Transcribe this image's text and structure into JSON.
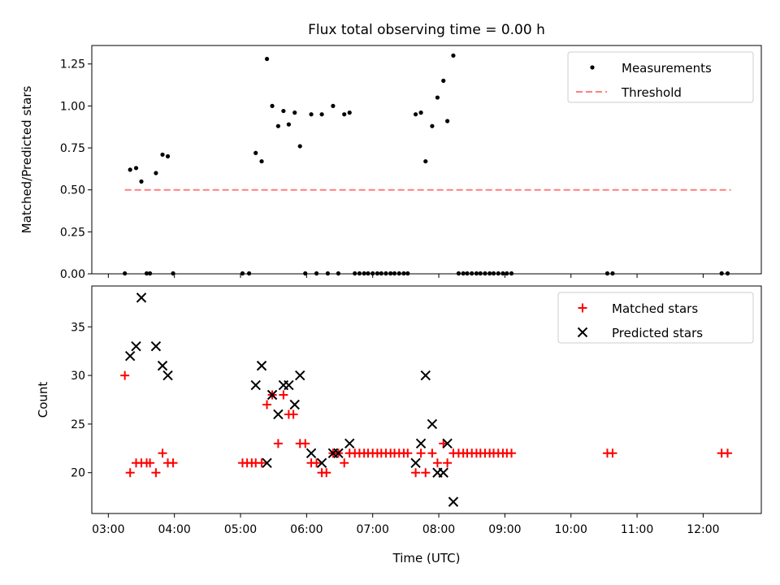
{
  "title": "Flux total observing time = 0.00 h",
  "chart_data": [
    {
      "type": "scatter",
      "ylabel": "Matched/Predicted stars",
      "ylim": [
        0,
        1.36
      ],
      "xlim_hours": [
        2.75,
        12.88
      ],
      "yticks": [
        0.0,
        0.25,
        0.5,
        0.75,
        1.0,
        1.25
      ],
      "ytick_labels": [
        "0.00",
        "0.25",
        "0.50",
        "0.75",
        "1.00",
        "1.25"
      ],
      "legend": {
        "position": "upper right",
        "entries": [
          "Measurements",
          "Threshold"
        ]
      },
      "threshold": {
        "name": "Threshold",
        "value": 0.5,
        "x_start": 3.25,
        "x_end": 12.42,
        "color": "#ff7f7f",
        "style": "dashed"
      },
      "series": [
        {
          "name": "Measurements",
          "marker": "dot",
          "color": "#000000",
          "points": [
            [
              3.25,
              0.0
            ],
            [
              3.33,
              0.62
            ],
            [
              3.42,
              0.63
            ],
            [
              3.5,
              0.55
            ],
            [
              3.58,
              0.0
            ],
            [
              3.63,
              0.0
            ],
            [
              3.72,
              0.6
            ],
            [
              3.82,
              0.71
            ],
            [
              3.9,
              0.7
            ],
            [
              3.98,
              0.0
            ],
            [
              5.03,
              0.0
            ],
            [
              5.13,
              0.0
            ],
            [
              5.23,
              0.72
            ],
            [
              5.32,
              0.67
            ],
            [
              5.4,
              1.28
            ],
            [
              5.48,
              1.0
            ],
            [
              5.57,
              0.88
            ],
            [
              5.65,
              0.97
            ],
            [
              5.73,
              0.89
            ],
            [
              5.82,
              0.96
            ],
            [
              5.9,
              0.76
            ],
            [
              5.98,
              0.0
            ],
            [
              6.07,
              0.95
            ],
            [
              6.15,
              0.0
            ],
            [
              6.23,
              0.95
            ],
            [
              6.32,
              0.0
            ],
            [
              6.4,
              1.0
            ],
            [
              6.48,
              0.0
            ],
            [
              6.57,
              0.95
            ],
            [
              6.65,
              0.96
            ],
            [
              6.73,
              0.0
            ],
            [
              6.8,
              0.0
            ],
            [
              6.87,
              0.0
            ],
            [
              6.93,
              0.0
            ],
            [
              7.0,
              0.0
            ],
            [
              7.07,
              0.0
            ],
            [
              7.13,
              0.0
            ],
            [
              7.2,
              0.0
            ],
            [
              7.27,
              0.0
            ],
            [
              7.33,
              0.0
            ],
            [
              7.4,
              0.0
            ],
            [
              7.47,
              0.0
            ],
            [
              7.53,
              0.0
            ],
            [
              7.65,
              0.95
            ],
            [
              7.73,
              0.96
            ],
            [
              7.8,
              0.67
            ],
            [
              7.9,
              0.88
            ],
            [
              7.98,
              1.05
            ],
            [
              8.07,
              1.15
            ],
            [
              8.13,
              0.91
            ],
            [
              8.22,
              1.3
            ],
            [
              8.3,
              0.0
            ],
            [
              8.37,
              0.0
            ],
            [
              8.43,
              0.0
            ],
            [
              8.5,
              0.0
            ],
            [
              8.57,
              0.0
            ],
            [
              8.63,
              0.0
            ],
            [
              8.7,
              0.0
            ],
            [
              8.77,
              0.0
            ],
            [
              8.83,
              0.0
            ],
            [
              8.9,
              0.0
            ],
            [
              8.97,
              0.0
            ],
            [
              9.03,
              0.0
            ],
            [
              9.1,
              0.0
            ],
            [
              10.55,
              0.0
            ],
            [
              10.63,
              0.0
            ],
            [
              12.28,
              0.0
            ],
            [
              12.37,
              0.0
            ]
          ]
        }
      ]
    },
    {
      "type": "scatter",
      "xlabel": "Time (UTC)",
      "ylabel": "Count",
      "ylim": [
        15.8,
        39.2
      ],
      "xlim_hours": [
        2.75,
        12.88
      ],
      "yticks": [
        20,
        25,
        30,
        35
      ],
      "ytick_labels": [
        "20",
        "25",
        "30",
        "35"
      ],
      "xticks_hours": [
        3,
        4,
        5,
        6,
        7,
        8,
        9,
        10,
        11,
        12
      ],
      "xtick_labels": [
        "03:00",
        "04:00",
        "05:00",
        "06:00",
        "07:00",
        "08:00",
        "09:00",
        "10:00",
        "11:00",
        "12:00"
      ],
      "legend": {
        "position": "upper right",
        "entries": [
          "Matched stars",
          "Predicted stars"
        ]
      },
      "series": [
        {
          "name": "Matched stars",
          "marker": "plus",
          "color": "#ff0000",
          "points": [
            [
              3.25,
              30
            ],
            [
              3.33,
              20
            ],
            [
              3.42,
              21
            ],
            [
              3.5,
              21
            ],
            [
              3.58,
              21
            ],
            [
              3.63,
              21
            ],
            [
              3.72,
              20
            ],
            [
              3.82,
              22
            ],
            [
              3.9,
              21
            ],
            [
              3.98,
              21
            ],
            [
              5.03,
              21
            ],
            [
              5.1,
              21
            ],
            [
              5.17,
              21
            ],
            [
              5.23,
              21
            ],
            [
              5.32,
              21
            ],
            [
              5.4,
              27
            ],
            [
              5.48,
              28
            ],
            [
              5.57,
              23
            ],
            [
              5.65,
              28
            ],
            [
              5.73,
              26
            ],
            [
              5.8,
              26
            ],
            [
              5.9,
              23
            ],
            [
              5.98,
              23
            ],
            [
              6.07,
              21
            ],
            [
              6.15,
              21
            ],
            [
              6.23,
              20
            ],
            [
              6.3,
              20
            ],
            [
              6.4,
              22
            ],
            [
              6.48,
              22
            ],
            [
              6.57,
              21
            ],
            [
              6.65,
              22
            ],
            [
              6.73,
              22
            ],
            [
              6.8,
              22
            ],
            [
              6.87,
              22
            ],
            [
              6.93,
              22
            ],
            [
              7.0,
              22
            ],
            [
              7.07,
              22
            ],
            [
              7.13,
              22
            ],
            [
              7.2,
              22
            ],
            [
              7.27,
              22
            ],
            [
              7.33,
              22
            ],
            [
              7.4,
              22
            ],
            [
              7.47,
              22
            ],
            [
              7.53,
              22
            ],
            [
              7.65,
              20
            ],
            [
              7.73,
              22
            ],
            [
              7.8,
              20
            ],
            [
              7.9,
              22
            ],
            [
              7.98,
              21
            ],
            [
              8.07,
              23
            ],
            [
              8.13,
              21
            ],
            [
              8.22,
              22
            ],
            [
              8.3,
              22
            ],
            [
              8.37,
              22
            ],
            [
              8.43,
              22
            ],
            [
              8.5,
              22
            ],
            [
              8.57,
              22
            ],
            [
              8.63,
              22
            ],
            [
              8.7,
              22
            ],
            [
              8.77,
              22
            ],
            [
              8.83,
              22
            ],
            [
              8.9,
              22
            ],
            [
              8.97,
              22
            ],
            [
              9.03,
              22
            ],
            [
              9.1,
              22
            ],
            [
              10.55,
              22
            ],
            [
              10.63,
              22
            ],
            [
              12.28,
              22
            ],
            [
              12.37,
              22
            ]
          ]
        },
        {
          "name": "Predicted stars",
          "marker": "x",
          "color": "#000000",
          "points": [
            [
              3.33,
              32
            ],
            [
              3.42,
              33
            ],
            [
              3.5,
              38
            ],
            [
              3.72,
              33
            ],
            [
              3.82,
              31
            ],
            [
              3.9,
              30
            ],
            [
              5.23,
              29
            ],
            [
              5.32,
              31
            ],
            [
              5.4,
              21
            ],
            [
              5.48,
              28
            ],
            [
              5.57,
              26
            ],
            [
              5.65,
              29
            ],
            [
              5.73,
              29
            ],
            [
              5.82,
              27
            ],
            [
              5.9,
              30
            ],
            [
              6.07,
              22
            ],
            [
              6.23,
              21
            ],
            [
              6.4,
              22
            ],
            [
              6.48,
              22
            ],
            [
              6.65,
              23
            ],
            [
              7.65,
              21
            ],
            [
              7.73,
              23
            ],
            [
              7.8,
              30
            ],
            [
              7.9,
              25
            ],
            [
              7.98,
              20
            ],
            [
              8.07,
              20
            ],
            [
              8.13,
              23
            ],
            [
              8.22,
              17
            ]
          ]
        }
      ]
    }
  ]
}
